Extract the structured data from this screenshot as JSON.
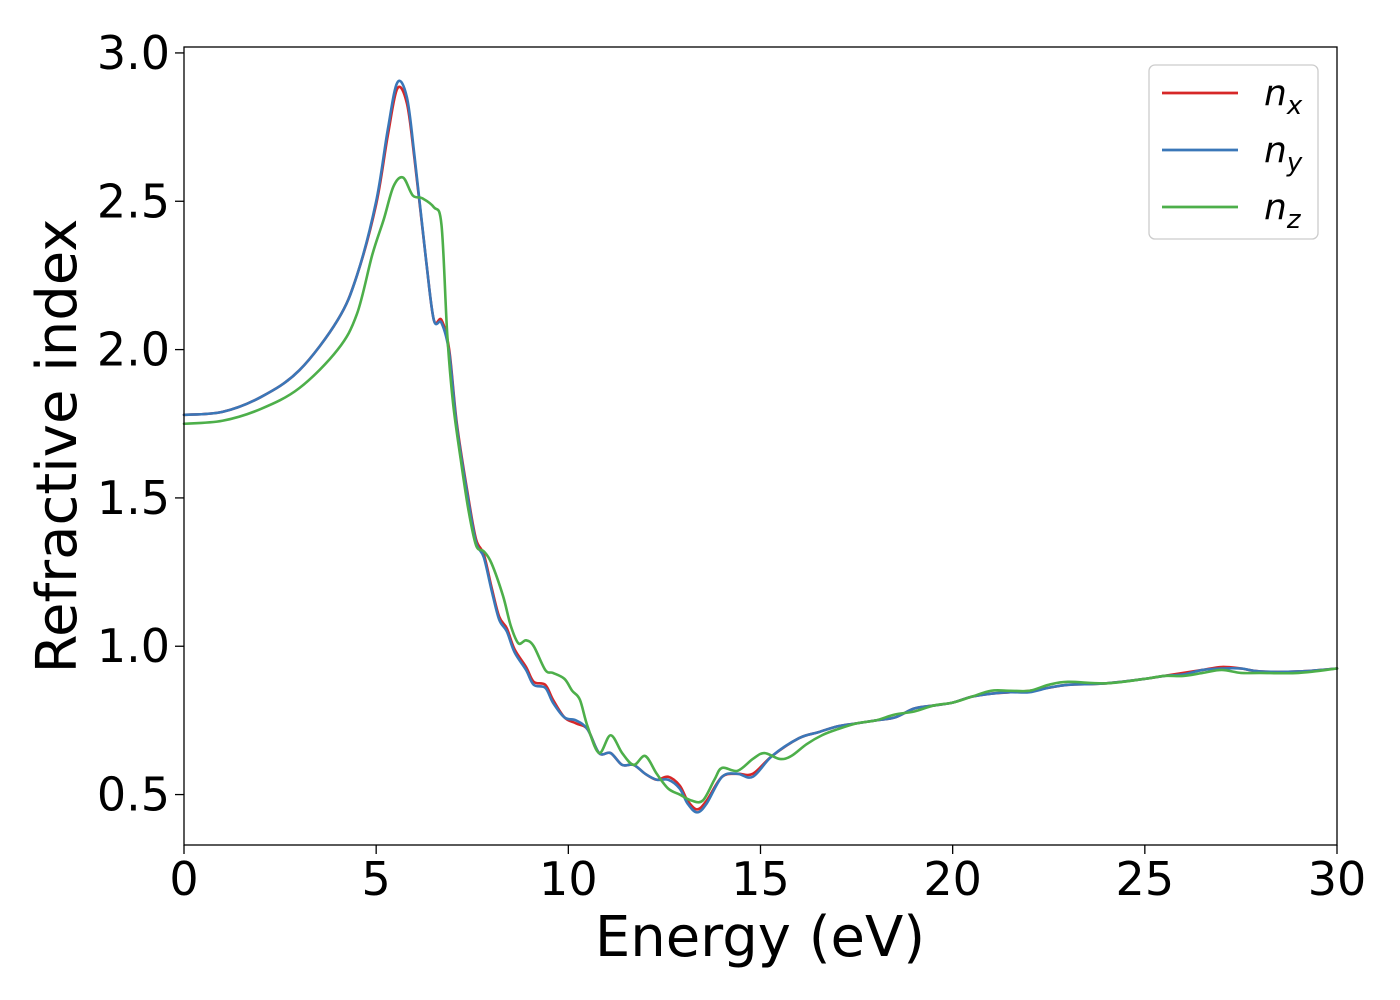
{
  "chart_data": {
    "type": "line",
    "title": "",
    "xlabel": "Energy (eV)",
    "ylabel": "Refractive index",
    "xlim": [
      0,
      30
    ],
    "ylim": [
      0.33,
      3.02
    ],
    "xticks": [
      0,
      5,
      10,
      15,
      20,
      25,
      30
    ],
    "xtick_labels": [
      "0",
      "5",
      "10",
      "15",
      "20",
      "25",
      "30"
    ],
    "yticks": [
      0.5,
      1.0,
      1.5,
      2.0,
      2.5,
      3.0
    ],
    "ytick_labels": [
      "0.5",
      "1.0",
      "1.5",
      "2.0",
      "2.5",
      "3.0"
    ],
    "grid": false,
    "legend_position": "top-right",
    "series": [
      {
        "name": "n_x",
        "legend_base": "n",
        "legend_sub": "x",
        "color": "#d62728",
        "points": [
          [
            0,
            1.78
          ],
          [
            1,
            1.79
          ],
          [
            2,
            1.84
          ],
          [
            3,
            1.93
          ],
          [
            4,
            2.1
          ],
          [
            4.5,
            2.25
          ],
          [
            5,
            2.49
          ],
          [
            5.3,
            2.72
          ],
          [
            5.55,
            2.88
          ],
          [
            5.8,
            2.83
          ],
          [
            6.0,
            2.64
          ],
          [
            6.3,
            2.3
          ],
          [
            6.5,
            2.1
          ],
          [
            6.7,
            2.1
          ],
          [
            6.9,
            2.0
          ],
          [
            7.1,
            1.75
          ],
          [
            7.4,
            1.5
          ],
          [
            7.6,
            1.36
          ],
          [
            7.8,
            1.31
          ],
          [
            8.0,
            1.2
          ],
          [
            8.2,
            1.1
          ],
          [
            8.4,
            1.06
          ],
          [
            8.6,
            0.99
          ],
          [
            8.9,
            0.93
          ],
          [
            9.1,
            0.88
          ],
          [
            9.4,
            0.87
          ],
          [
            9.6,
            0.82
          ],
          [
            9.9,
            0.76
          ],
          [
            10.2,
            0.74
          ],
          [
            10.5,
            0.72
          ],
          [
            10.8,
            0.64
          ],
          [
            11.1,
            0.64
          ],
          [
            11.4,
            0.6
          ],
          [
            11.7,
            0.6
          ],
          [
            12.0,
            0.57
          ],
          [
            12.3,
            0.55
          ],
          [
            12.6,
            0.56
          ],
          [
            12.9,
            0.53
          ],
          [
            13.1,
            0.48
          ],
          [
            13.35,
            0.45
          ],
          [
            13.6,
            0.48
          ],
          [
            14.0,
            0.56
          ],
          [
            14.4,
            0.57
          ],
          [
            14.8,
            0.57
          ],
          [
            15.3,
            0.63
          ],
          [
            16.0,
            0.69
          ],
          [
            16.5,
            0.71
          ],
          [
            17.0,
            0.73
          ],
          [
            17.5,
            0.74
          ],
          [
            18.0,
            0.75
          ],
          [
            18.5,
            0.76
          ],
          [
            19.0,
            0.79
          ],
          [
            19.5,
            0.8
          ],
          [
            20.0,
            0.81
          ],
          [
            20.5,
            0.83
          ],
          [
            21.0,
            0.84
          ],
          [
            21.5,
            0.845
          ],
          [
            22.0,
            0.85
          ],
          [
            22.5,
            0.86
          ],
          [
            23.0,
            0.87
          ],
          [
            24.0,
            0.875
          ],
          [
            25.0,
            0.89
          ],
          [
            25.5,
            0.9
          ],
          [
            26.0,
            0.91
          ],
          [
            26.5,
            0.92
          ],
          [
            27.0,
            0.93
          ],
          [
            27.5,
            0.925
          ],
          [
            28.0,
            0.915
          ],
          [
            29.0,
            0.915
          ],
          [
            30.0,
            0.925
          ]
        ]
      },
      {
        "name": "n_y",
        "legend_base": "n",
        "legend_sub": "y",
        "color": "#3a77b8",
        "points": [
          [
            0,
            1.78
          ],
          [
            1,
            1.79
          ],
          [
            2,
            1.84
          ],
          [
            3,
            1.93
          ],
          [
            4,
            2.1
          ],
          [
            4.5,
            2.25
          ],
          [
            5,
            2.5
          ],
          [
            5.3,
            2.74
          ],
          [
            5.55,
            2.9
          ],
          [
            5.8,
            2.85
          ],
          [
            6.0,
            2.65
          ],
          [
            6.3,
            2.3
          ],
          [
            6.5,
            2.1
          ],
          [
            6.7,
            2.09
          ],
          [
            6.9,
            1.99
          ],
          [
            7.1,
            1.74
          ],
          [
            7.4,
            1.49
          ],
          [
            7.6,
            1.35
          ],
          [
            7.8,
            1.3
          ],
          [
            8.0,
            1.19
          ],
          [
            8.2,
            1.09
          ],
          [
            8.4,
            1.05
          ],
          [
            8.6,
            0.98
          ],
          [
            8.9,
            0.92
          ],
          [
            9.1,
            0.87
          ],
          [
            9.4,
            0.86
          ],
          [
            9.6,
            0.81
          ],
          [
            9.9,
            0.76
          ],
          [
            10.2,
            0.75
          ],
          [
            10.5,
            0.72
          ],
          [
            10.8,
            0.64
          ],
          [
            11.1,
            0.64
          ],
          [
            11.4,
            0.6
          ],
          [
            11.7,
            0.6
          ],
          [
            12.0,
            0.57
          ],
          [
            12.3,
            0.55
          ],
          [
            12.6,
            0.55
          ],
          [
            12.9,
            0.52
          ],
          [
            13.1,
            0.47
          ],
          [
            13.35,
            0.44
          ],
          [
            13.6,
            0.47
          ],
          [
            14.0,
            0.56
          ],
          [
            14.4,
            0.57
          ],
          [
            14.8,
            0.56
          ],
          [
            15.3,
            0.63
          ],
          [
            16.0,
            0.69
          ],
          [
            16.5,
            0.71
          ],
          [
            17.0,
            0.73
          ],
          [
            17.5,
            0.74
          ],
          [
            18.0,
            0.75
          ],
          [
            18.5,
            0.76
          ],
          [
            19.0,
            0.79
          ],
          [
            19.5,
            0.8
          ],
          [
            20.0,
            0.81
          ],
          [
            20.5,
            0.83
          ],
          [
            21.0,
            0.84
          ],
          [
            21.5,
            0.845
          ],
          [
            22.0,
            0.845
          ],
          [
            22.5,
            0.86
          ],
          [
            23.0,
            0.87
          ],
          [
            24.0,
            0.875
          ],
          [
            25.0,
            0.89
          ],
          [
            25.5,
            0.9
          ],
          [
            26.0,
            0.905
          ],
          [
            26.5,
            0.92
          ],
          [
            27.0,
            0.925
          ],
          [
            27.5,
            0.925
          ],
          [
            28.0,
            0.915
          ],
          [
            29.0,
            0.915
          ],
          [
            30.0,
            0.925
          ]
        ]
      },
      {
        "name": "n_z",
        "legend_base": "n",
        "legend_sub": "z",
        "color": "#4daf4a",
        "points": [
          [
            0,
            1.75
          ],
          [
            1,
            1.76
          ],
          [
            2,
            1.8
          ],
          [
            3,
            1.87
          ],
          [
            4,
            2.0
          ],
          [
            4.5,
            2.12
          ],
          [
            4.9,
            2.32
          ],
          [
            5.2,
            2.44
          ],
          [
            5.45,
            2.55
          ],
          [
            5.7,
            2.58
          ],
          [
            5.95,
            2.52
          ],
          [
            6.2,
            2.51
          ],
          [
            6.5,
            2.48
          ],
          [
            6.7,
            2.42
          ],
          [
            6.85,
            2.05
          ],
          [
            7.0,
            1.82
          ],
          [
            7.2,
            1.63
          ],
          [
            7.4,
            1.46
          ],
          [
            7.6,
            1.34
          ],
          [
            7.8,
            1.32
          ],
          [
            8.0,
            1.28
          ],
          [
            8.3,
            1.17
          ],
          [
            8.5,
            1.07
          ],
          [
            8.7,
            1.01
          ],
          [
            8.9,
            1.02
          ],
          [
            9.1,
            1.0
          ],
          [
            9.4,
            0.92
          ],
          [
            9.6,
            0.91
          ],
          [
            9.9,
            0.89
          ],
          [
            10.1,
            0.85
          ],
          [
            10.3,
            0.82
          ],
          [
            10.5,
            0.73
          ],
          [
            10.8,
            0.64
          ],
          [
            11.1,
            0.7
          ],
          [
            11.4,
            0.64
          ],
          [
            11.7,
            0.6
          ],
          [
            12.0,
            0.63
          ],
          [
            12.3,
            0.57
          ],
          [
            12.6,
            0.52
          ],
          [
            12.9,
            0.5
          ],
          [
            13.2,
            0.48
          ],
          [
            13.5,
            0.48
          ],
          [
            13.8,
            0.55
          ],
          [
            14.0,
            0.59
          ],
          [
            14.4,
            0.58
          ],
          [
            14.8,
            0.62
          ],
          [
            15.1,
            0.64
          ],
          [
            15.5,
            0.62
          ],
          [
            15.8,
            0.63
          ],
          [
            16.2,
            0.67
          ],
          [
            16.6,
            0.7
          ],
          [
            17.0,
            0.72
          ],
          [
            17.5,
            0.74
          ],
          [
            18.0,
            0.75
          ],
          [
            18.5,
            0.77
          ],
          [
            19.0,
            0.78
          ],
          [
            19.5,
            0.8
          ],
          [
            20.0,
            0.81
          ],
          [
            20.5,
            0.83
          ],
          [
            21.0,
            0.85
          ],
          [
            21.5,
            0.85
          ],
          [
            22.0,
            0.85
          ],
          [
            22.5,
            0.87
          ],
          [
            23.0,
            0.88
          ],
          [
            24.0,
            0.875
          ],
          [
            25.0,
            0.89
          ],
          [
            25.5,
            0.9
          ],
          [
            26.0,
            0.9
          ],
          [
            26.5,
            0.91
          ],
          [
            27.0,
            0.92
          ],
          [
            27.5,
            0.91
          ],
          [
            28.0,
            0.91
          ],
          [
            29.0,
            0.91
          ],
          [
            30.0,
            0.925
          ]
        ]
      }
    ]
  }
}
